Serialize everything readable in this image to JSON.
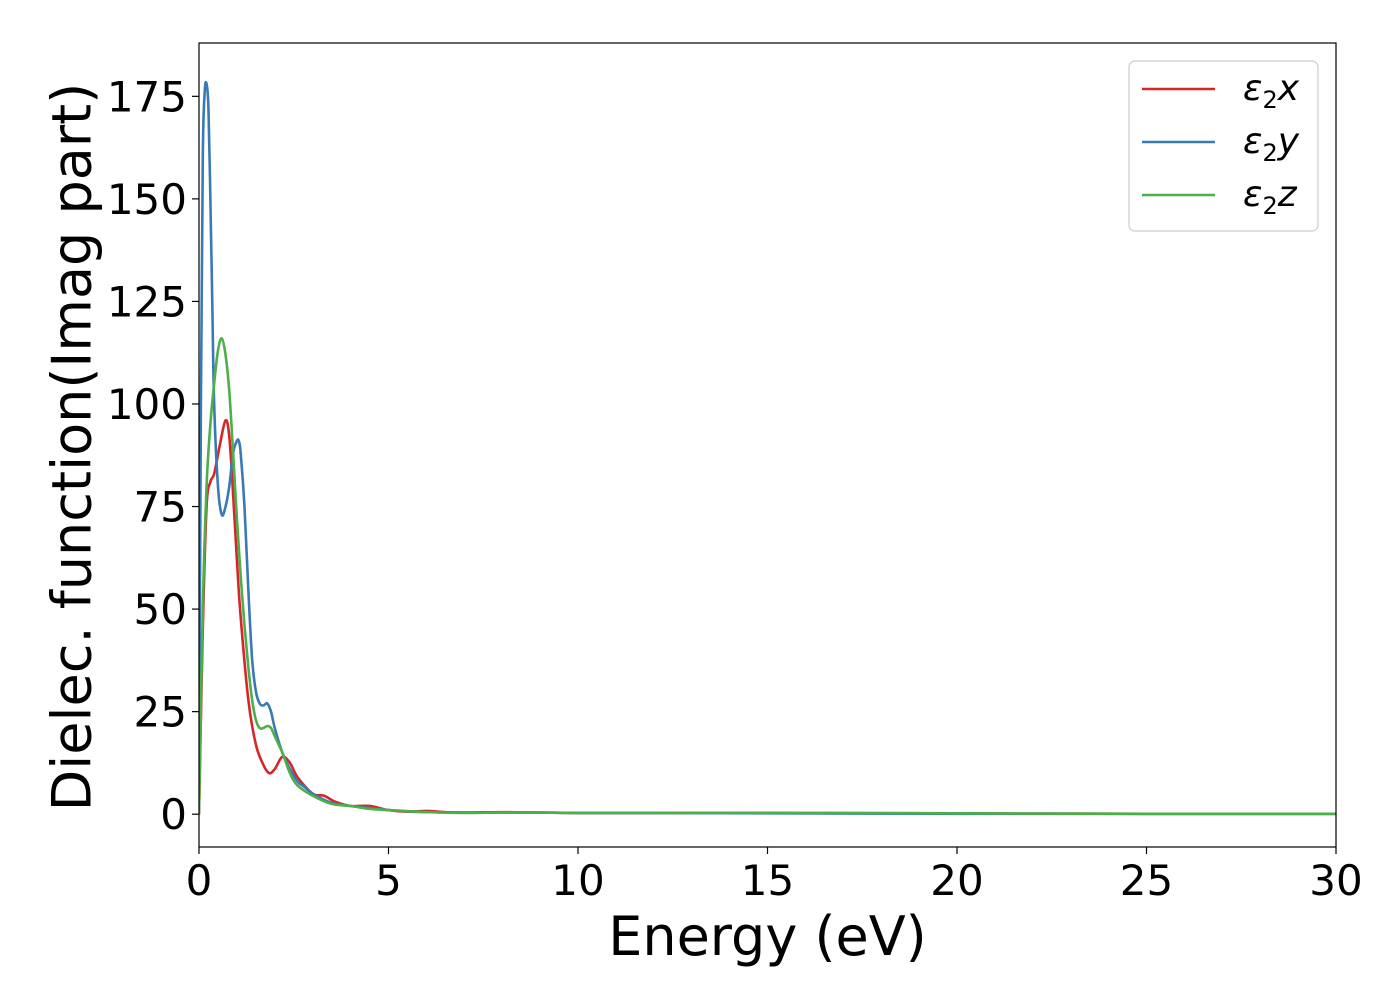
{
  "chart_data": {
    "type": "line",
    "title": "",
    "xlabel": "Energy (eV)",
    "ylabel": "Dielec. function(Imag part)",
    "xlim": [
      0,
      30
    ],
    "ylim": [
      -8,
      188
    ],
    "xticks": [
      0,
      5,
      10,
      15,
      20,
      25,
      30
    ],
    "xtick_labels": [
      "0",
      "5",
      "10",
      "15",
      "20",
      "25",
      "30"
    ],
    "yticks": [
      0,
      25,
      50,
      75,
      100,
      125,
      150,
      175
    ],
    "ytick_labels": [
      "0",
      "25",
      "50",
      "75",
      "100",
      "125",
      "150",
      "175"
    ],
    "grid": false,
    "legend_position": "top-right",
    "series": [
      {
        "name": "ε₂x",
        "legend_main": "ε",
        "legend_sub": "2",
        "legend_var": "x",
        "color": "#d62728",
        "x": [
          0,
          0.1,
          0.2,
          0.3,
          0.4,
          0.55,
          0.7,
          0.8,
          0.9,
          1.0,
          1.1,
          1.3,
          1.5,
          1.7,
          1.85,
          2.0,
          2.2,
          2.4,
          2.6,
          3.0,
          3.3,
          3.6,
          4.0,
          4.5,
          5.0,
          5.5,
          6.0,
          6.5,
          7.0,
          8.0,
          9.0,
          10.0,
          12.0,
          15.0,
          20.0,
          25.0,
          30.0
        ],
        "y": [
          0,
          45,
          75,
          81,
          83,
          90,
          96,
          92,
          78,
          62,
          48,
          28,
          17,
          12,
          10,
          11,
          14,
          12.5,
          9,
          5,
          4.5,
          3,
          2,
          2,
          1,
          0.6,
          0.8,
          0.5,
          0.4,
          0.5,
          0.4,
          0.3,
          0.3,
          0.3,
          0.2,
          0.1,
          0.1
        ]
      },
      {
        "name": "ε₂y",
        "legend_main": "ε",
        "legend_sub": "2",
        "legend_var": "y",
        "color": "#3a7ab4",
        "x": [
          0,
          0.05,
          0.1,
          0.15,
          0.2,
          0.25,
          0.3,
          0.35,
          0.4,
          0.5,
          0.6,
          0.7,
          0.8,
          0.9,
          1.0,
          1.05,
          1.1,
          1.2,
          1.3,
          1.4,
          1.5,
          1.6,
          1.7,
          1.8,
          1.9,
          2.0,
          2.2,
          2.4,
          2.6,
          2.8,
          3.0,
          3.3,
          3.6,
          4.0,
          4.5,
          5.0,
          5.5,
          6.0,
          7.0,
          8.0,
          9.0,
          10.0,
          12.0,
          15.0,
          20.0,
          25.0,
          30.0
        ],
        "y": [
          2,
          100,
          160,
          176,
          178,
          172,
          150,
          125,
          100,
          80,
          73,
          75,
          80,
          88,
          91,
          91,
          88,
          75,
          55,
          38,
          30,
          27,
          26.5,
          27,
          25,
          21,
          15,
          11,
          8,
          6.5,
          5,
          3.5,
          2.5,
          2,
          1.5,
          1,
          0.7,
          0.5,
          0.4,
          0.4,
          0.4,
          0.3,
          0.3,
          0.2,
          0.1,
          0.1,
          0.1
        ]
      },
      {
        "name": "ε₂z",
        "legend_main": "ε",
        "legend_sub": "2",
        "legend_var": "z",
        "color": "#4daf4a",
        "x": [
          0,
          0.1,
          0.2,
          0.3,
          0.4,
          0.5,
          0.6,
          0.7,
          0.8,
          0.9,
          1.0,
          1.1,
          1.2,
          1.3,
          1.4,
          1.5,
          1.6,
          1.7,
          1.8,
          1.9,
          2.0,
          2.2,
          2.4,
          2.6,
          3.0,
          3.5,
          4.0,
          4.5,
          5.0,
          6.0,
          7.0,
          8.0,
          9.0,
          10.0,
          12.0,
          15.0,
          20.0,
          25.0,
          30.0
        ],
        "y": [
          0,
          50,
          80,
          95,
          105,
          113,
          116,
          112,
          103,
          88,
          72,
          58,
          46,
          36,
          28,
          23,
          21,
          21,
          21.5,
          21,
          19,
          15,
          10,
          7,
          4.5,
          2.5,
          2,
          1.3,
          1,
          0.5,
          0.3,
          0.4,
          0.4,
          0.3,
          0.3,
          0.3,
          0.2,
          0.1,
          0.1
        ]
      }
    ]
  }
}
